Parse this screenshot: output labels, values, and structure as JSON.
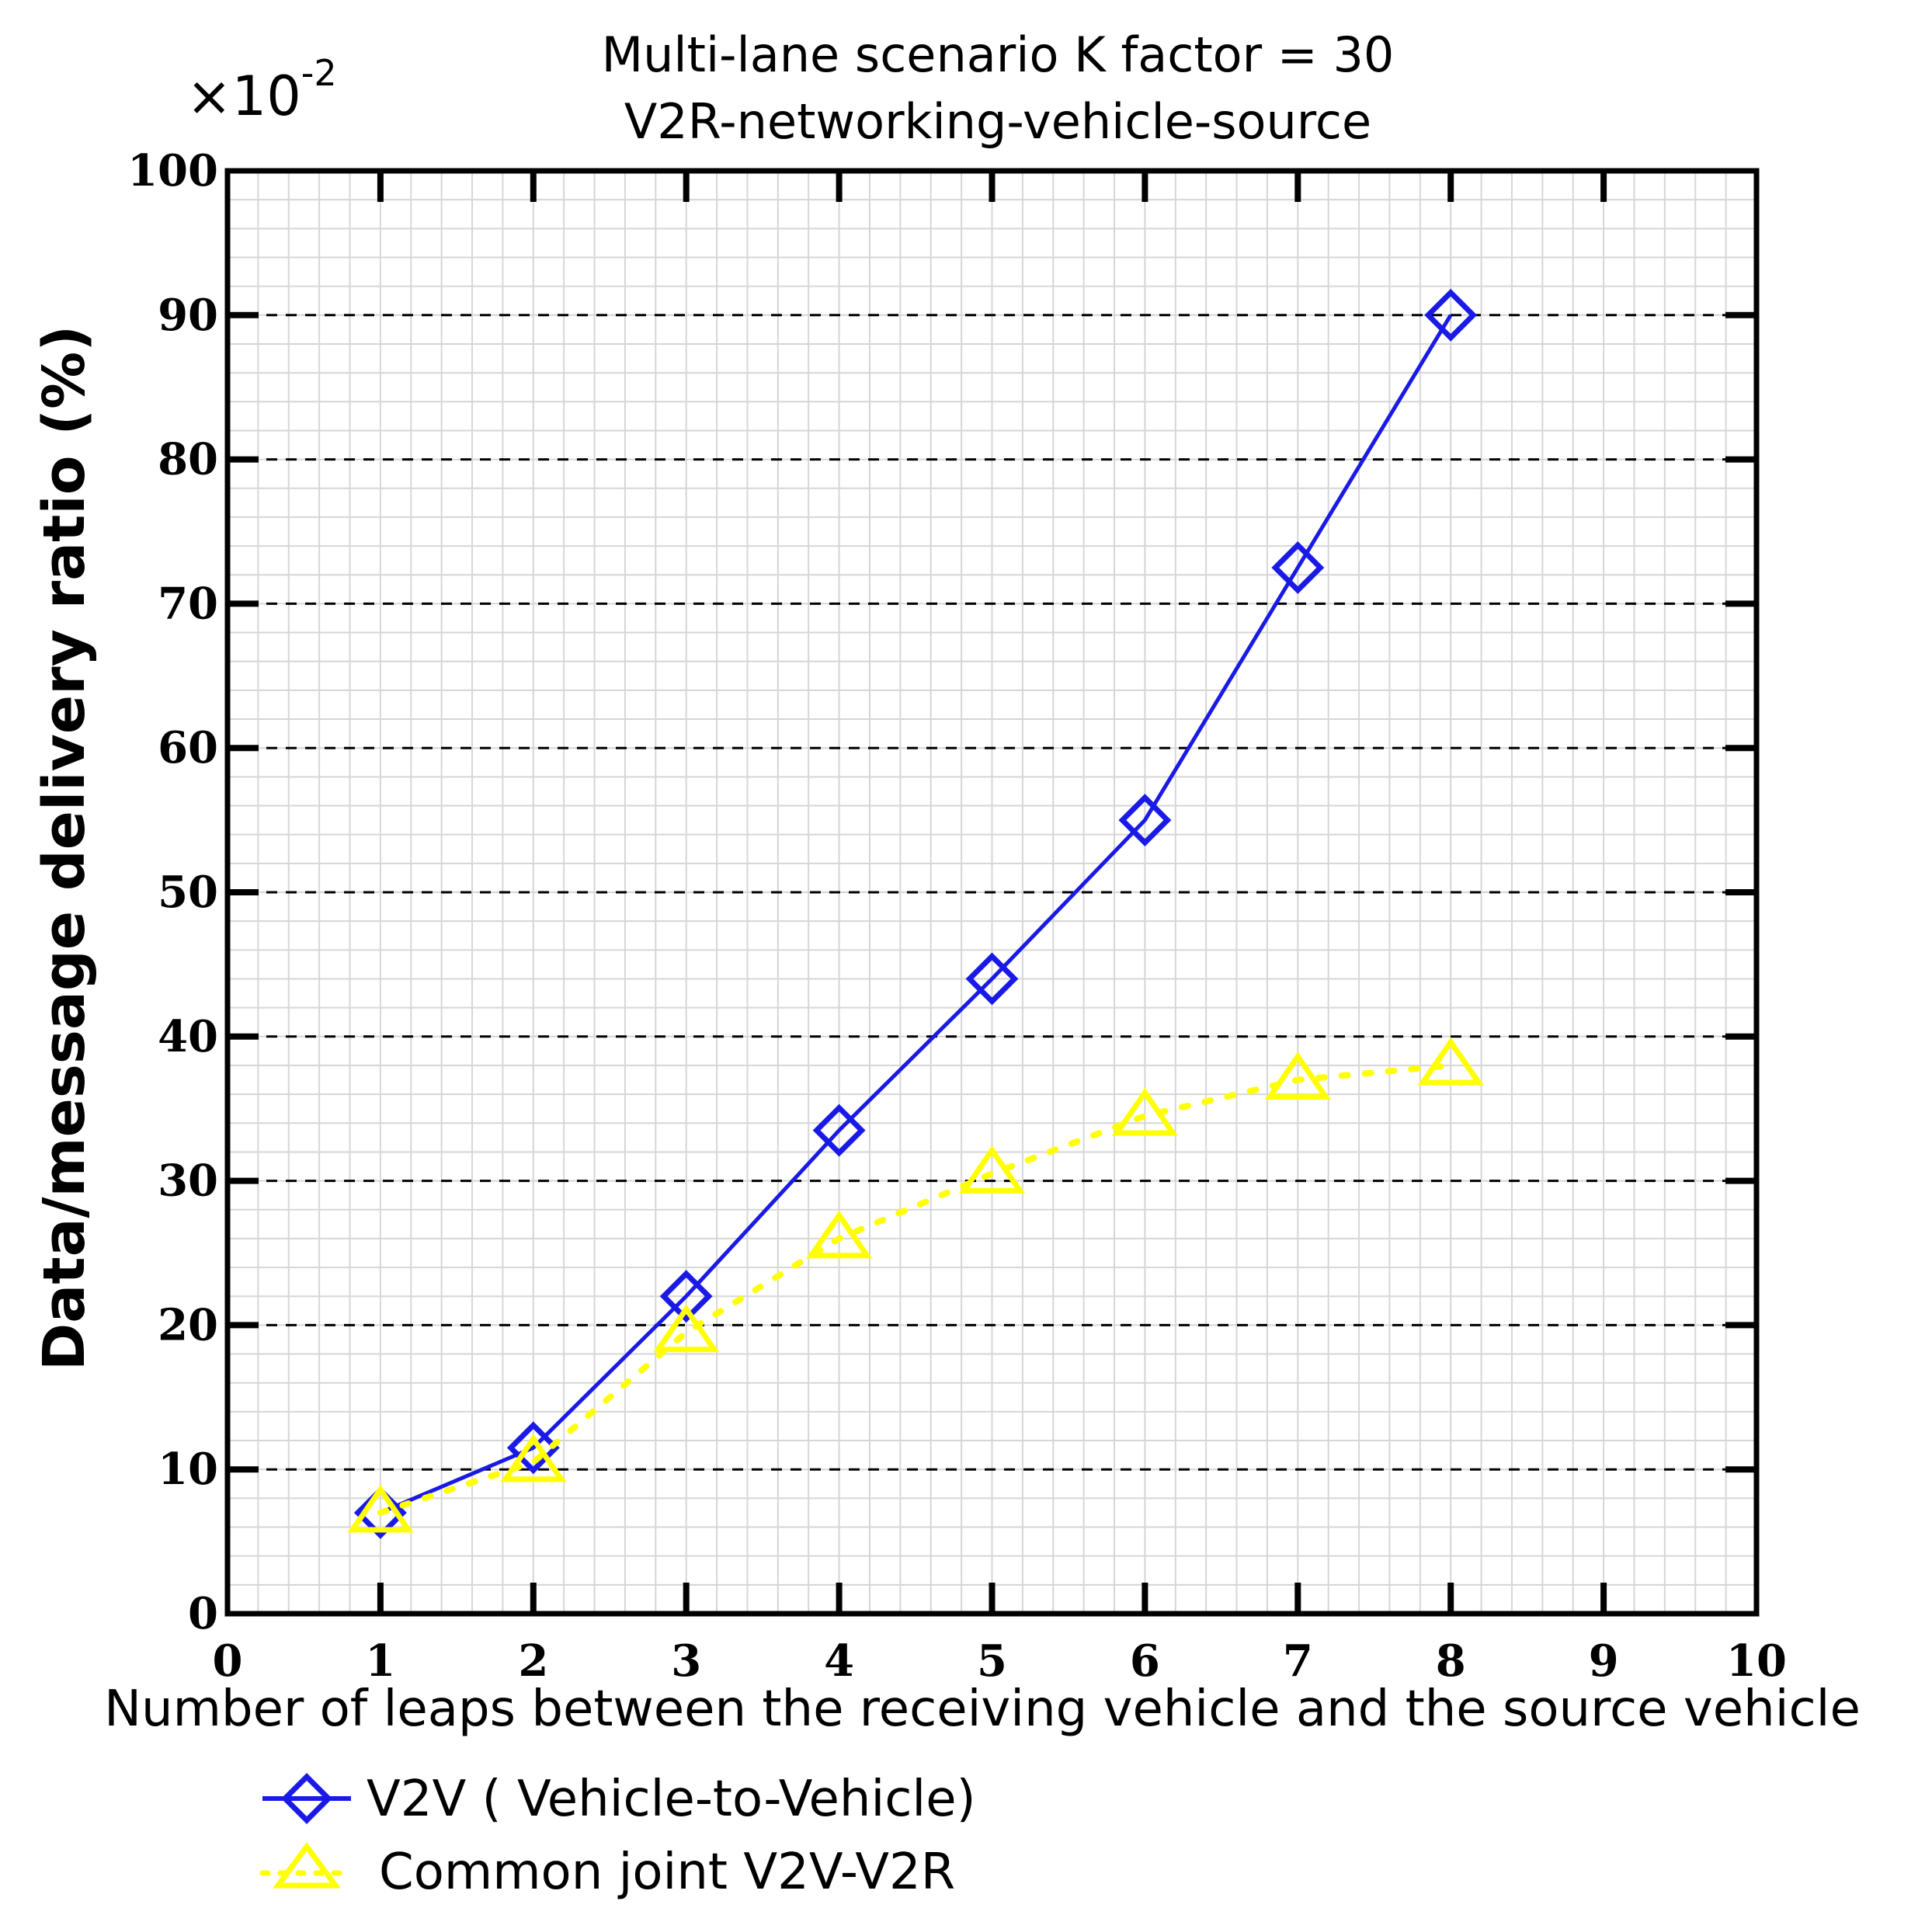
{
  "chart_data": {
    "type": "line",
    "title_line1": "Multi-lane scenario K factor = 30",
    "title_line2": "V2R-networking-vehicle-source",
    "multiplier_base": "×10",
    "multiplier_exp": "-2",
    "xlabel": "Number of leaps between the receiving vehicle and the source vehicle",
    "ylabel": "Data/message delivery ratio (%)",
    "xlim": [
      0,
      10
    ],
    "ylim": [
      0,
      100
    ],
    "x_ticks": [
      "0",
      "1",
      "2",
      "3",
      "4",
      "5",
      "6",
      "7",
      "8",
      "9",
      "10"
    ],
    "y_ticks": [
      "0",
      "10",
      "20",
      "30",
      "40",
      "50",
      "60",
      "70",
      "80",
      "90",
      "100"
    ],
    "grid": true,
    "legend_position": "bottom-left",
    "series": [
      {
        "name": "V2V ( Vehicle-to-Vehicle)",
        "color": "#1a1ae6",
        "marker": "diamond",
        "line_style": "solid",
        "x": [
          1,
          2,
          3,
          4,
          5,
          6,
          7,
          8
        ],
        "y": [
          7,
          11.5,
          22,
          33.5,
          44,
          55,
          72.5,
          90
        ]
      },
      {
        "name": "Common joint V2V-V2R",
        "color": "#ffff00",
        "marker": "triangle",
        "line_style": "dotted",
        "x": [
          1,
          2,
          3,
          4,
          5,
          6,
          7,
          8
        ],
        "y": [
          7,
          10.5,
          19.5,
          26,
          30.5,
          34.5,
          37,
          38
        ]
      }
    ]
  }
}
